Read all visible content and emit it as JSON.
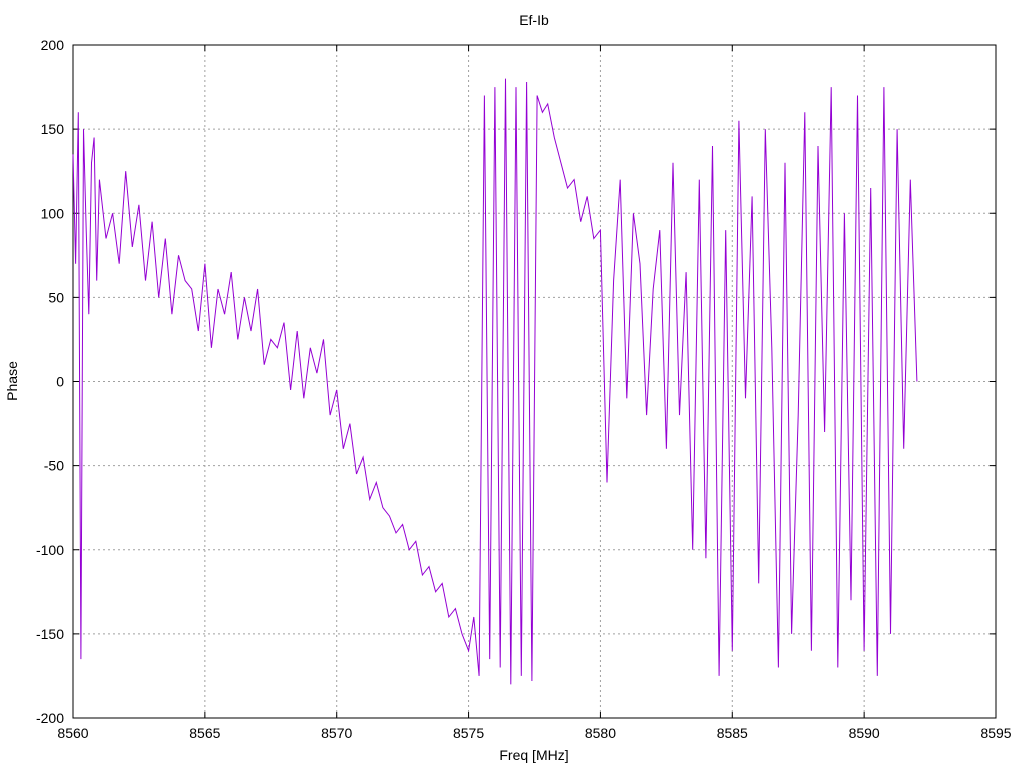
{
  "chart_data": {
    "type": "line",
    "title": "Ef-Ib",
    "xlabel": "Freq [MHz]",
    "ylabel": "Phase",
    "xlim": [
      8560,
      8595
    ],
    "ylim": [
      -200,
      200
    ],
    "x_ticks": [
      8560,
      8565,
      8570,
      8575,
      8580,
      8585,
      8590,
      8595
    ],
    "y_ticks": [
      -200,
      -150,
      -100,
      -50,
      0,
      50,
      100,
      150,
      200
    ],
    "x_tick_labels": [
      "8560",
      "8565",
      "8570",
      "8575",
      "8580",
      "8585",
      "8590",
      "8595"
    ],
    "y_tick_labels": [
      "-200",
      "-150",
      "-100",
      "-50",
      "0",
      "50",
      "100",
      "150",
      "200"
    ],
    "grid": true,
    "legend": "none",
    "series": [
      {
        "color": "#9400d3",
        "x": [
          8560.0,
          8560.1,
          8560.2,
          8560.3,
          8560.4,
          8560.5,
          8560.6,
          8560.7,
          8560.8,
          8560.9,
          8561.0,
          8561.25,
          8561.5,
          8561.75,
          8562.0,
          8562.25,
          8562.5,
          8562.75,
          8563.0,
          8563.25,
          8563.5,
          8563.75,
          8564.0,
          8564.25,
          8564.5,
          8564.75,
          8565.0,
          8565.25,
          8565.5,
          8565.75,
          8566.0,
          8566.25,
          8566.5,
          8566.75,
          8567.0,
          8567.25,
          8567.5,
          8567.75,
          8568.0,
          8568.25,
          8568.5,
          8568.75,
          8569.0,
          8569.25,
          8569.5,
          8569.75,
          8570.0,
          8570.25,
          8570.5,
          8570.75,
          8571.0,
          8571.25,
          8571.5,
          8571.75,
          8572.0,
          8572.25,
          8572.5,
          8572.75,
          8573.0,
          8573.25,
          8573.5,
          8573.75,
          8574.0,
          8574.25,
          8574.5,
          8574.75,
          8575.0,
          8575.2,
          8575.4,
          8575.6,
          8575.8,
          8576.0,
          8576.2,
          8576.4,
          8576.6,
          8576.8,
          8577.0,
          8577.2,
          8577.4,
          8577.6,
          8577.8,
          8578.0,
          8578.25,
          8578.5,
          8578.75,
          8579.0,
          8579.25,
          8579.5,
          8579.75,
          8580.0,
          8580.25,
          8580.5,
          8580.75,
          8581.0,
          8581.25,
          8581.5,
          8581.75,
          8582.0,
          8582.25,
          8582.5,
          8582.75,
          8583.0,
          8583.25,
          8583.5,
          8583.75,
          8584.0,
          8584.25,
          8584.5,
          8584.75,
          8585.0,
          8585.25,
          8585.5,
          8585.75,
          8586.0,
          8586.25,
          8586.5,
          8586.75,
          8587.0,
          8587.25,
          8587.5,
          8587.75,
          8588.0,
          8588.25,
          8588.5,
          8588.75,
          8589.0,
          8589.25,
          8589.5,
          8589.75,
          8590.0,
          8590.25,
          8590.5,
          8590.75,
          8591.0,
          8591.25,
          8591.5,
          8591.75,
          8592.0
        ],
        "y": [
          135,
          70,
          160,
          -165,
          150,
          90,
          40,
          130,
          145,
          60,
          120,
          85,
          100,
          70,
          125,
          80,
          105,
          60,
          95,
          50,
          85,
          40,
          75,
          60,
          55,
          30,
          70,
          20,
          55,
          40,
          65,
          25,
          50,
          30,
          55,
          10,
          25,
          20,
          35,
          -5,
          30,
          -10,
          20,
          5,
          25,
          -20,
          -5,
          -40,
          -25,
          -55,
          -45,
          -70,
          -60,
          -75,
          -80,
          -90,
          -85,
          -100,
          -95,
          -115,
          -110,
          -125,
          -120,
          -140,
          -135,
          -150,
          -160,
          -140,
          -175,
          170,
          -165,
          175,
          -170,
          180,
          -180,
          175,
          -175,
          178,
          -178,
          170,
          160,
          165,
          145,
          130,
          115,
          120,
          95,
          110,
          85,
          90,
          -60,
          60,
          120,
          -10,
          100,
          70,
          -20,
          55,
          90,
          -40,
          130,
          -20,
          65,
          -100,
          120,
          -105,
          140,
          -175,
          90,
          -160,
          155,
          -10,
          110,
          -120,
          150,
          20,
          -170,
          130,
          -150,
          -20,
          160,
          -160,
          140,
          -30,
          175,
          -170,
          100,
          -130,
          170,
          -160,
          115,
          -175,
          175,
          -150,
          150,
          -40,
          120,
          0
        ]
      }
    ]
  }
}
